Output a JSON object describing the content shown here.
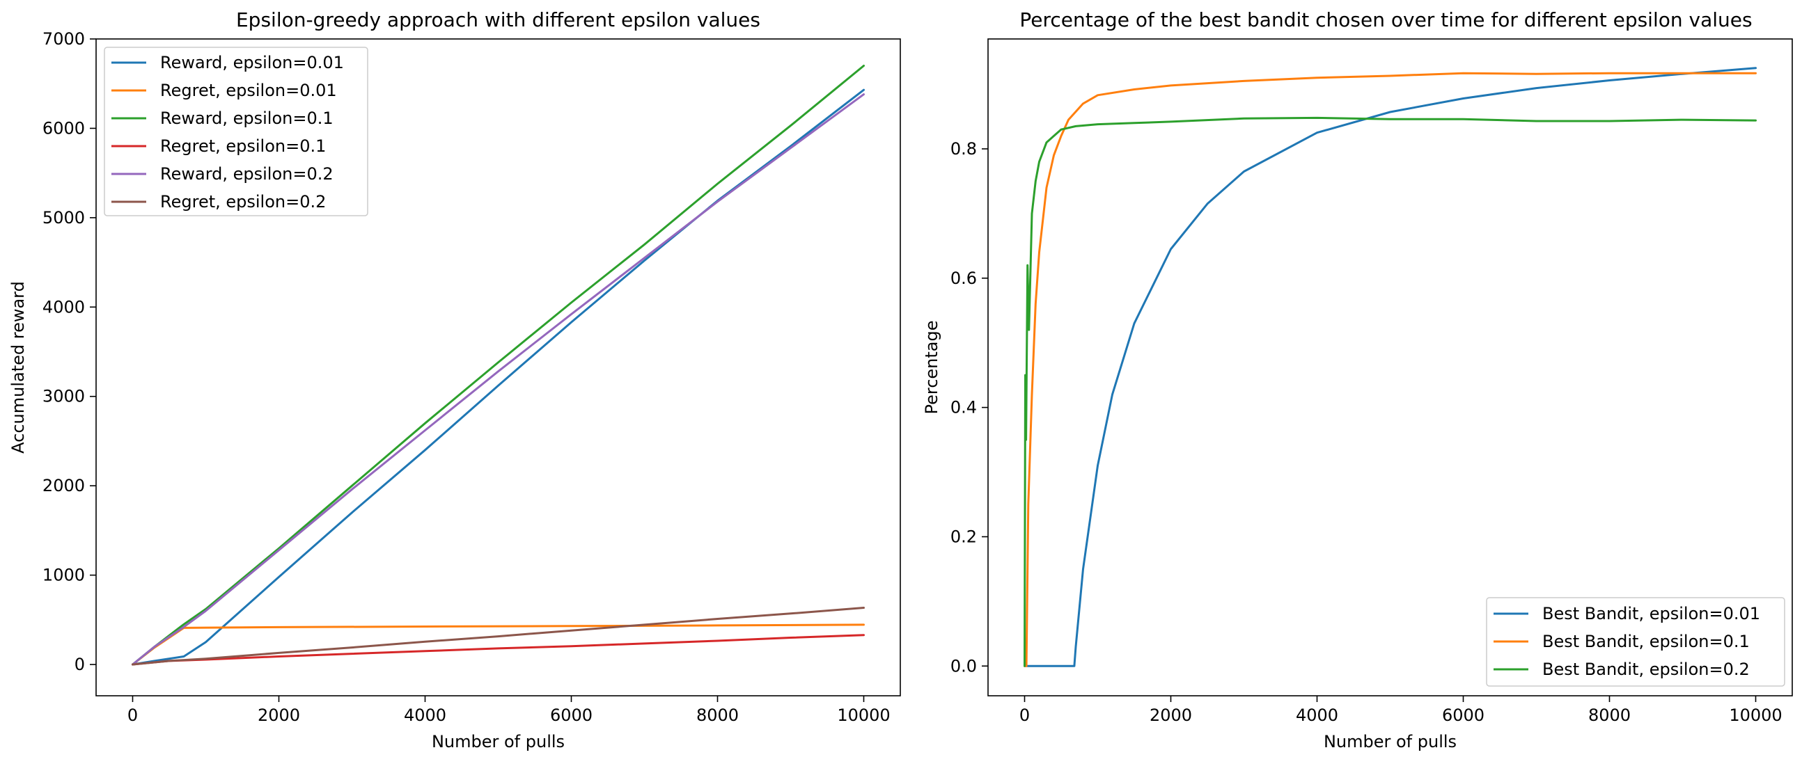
{
  "chart_data": [
    {
      "type": "line",
      "title": "Epsilon-greedy approach with different epsilon values",
      "xlabel": "Number of pulls",
      "ylabel": "Accumulated reward",
      "xlim": [
        -500,
        10500
      ],
      "ylim": [
        -350,
        7000
      ],
      "xticks": [
        0,
        2000,
        4000,
        6000,
        8000,
        10000
      ],
      "yticks": [
        0,
        1000,
        2000,
        3000,
        4000,
        5000,
        6000,
        7000
      ],
      "grid": false,
      "legend_position": "top-left",
      "series": [
        {
          "name": "Reward, epsilon=0.01",
          "color": "#1f77b4",
          "x": [
            0,
            300,
            700,
            1000,
            2000,
            3000,
            4000,
            5000,
            6000,
            7000,
            8000,
            9000,
            10000
          ],
          "y": [
            0,
            40,
            90,
            250,
            980,
            1700,
            2400,
            3120,
            3830,
            4520,
            5190,
            5800,
            6430
          ]
        },
        {
          "name": "Regret, epsilon=0.01",
          "color": "#ff7f0e",
          "x": [
            0,
            300,
            700,
            1000,
            2000,
            4000,
            6000,
            8000,
            10000
          ],
          "y": [
            0,
            190,
            410,
            412,
            418,
            425,
            430,
            437,
            445
          ]
        },
        {
          "name": "Reward, epsilon=0.1",
          "color": "#2ca02c",
          "x": [
            0,
            300,
            700,
            1000,
            2000,
            3000,
            4000,
            5000,
            6000,
            7000,
            8000,
            9000,
            10000
          ],
          "y": [
            0,
            200,
            450,
            620,
            1300,
            2000,
            2700,
            3380,
            4050,
            4700,
            5380,
            6030,
            6700
          ]
        },
        {
          "name": "Regret, epsilon=0.1",
          "color": "#d62728",
          "x": [
            0,
            500,
            1000,
            2000,
            3000,
            4000,
            5000,
            6000,
            7000,
            8000,
            9000,
            10000
          ],
          "y": [
            0,
            40,
            55,
            90,
            120,
            150,
            180,
            205,
            235,
            265,
            300,
            330
          ]
        },
        {
          "name": "Reward, epsilon=0.2",
          "color": "#9467bd",
          "x": [
            0,
            300,
            700,
            1000,
            2000,
            3000,
            4000,
            5000,
            6000,
            7000,
            8000,
            9000,
            10000
          ],
          "y": [
            0,
            200,
            420,
            600,
            1280,
            1960,
            2620,
            3280,
            3920,
            4550,
            5180,
            5780,
            6380
          ]
        },
        {
          "name": "Regret, epsilon=0.2",
          "color": "#8c564b",
          "x": [
            0,
            500,
            1000,
            2000,
            3000,
            4000,
            5000,
            6000,
            7000,
            8000,
            9000,
            10000
          ],
          "y": [
            0,
            40,
            65,
            130,
            190,
            255,
            315,
            380,
            445,
            510,
            570,
            635
          ]
        }
      ]
    },
    {
      "type": "line",
      "title": "Percentage of the best bandit chosen over time for different epsilon values",
      "xlabel": "Number of pulls",
      "ylabel": "Percentage",
      "xlim": [
        -500,
        10500
      ],
      "ylim": [
        -0.046,
        0.97
      ],
      "xticks": [
        0,
        2000,
        4000,
        6000,
        8000,
        10000
      ],
      "yticks": [
        0.0,
        0.2,
        0.4,
        0.6,
        0.8
      ],
      "ytick_labels": [
        "0.0",
        "0.2",
        "0.4",
        "0.6",
        "0.8"
      ],
      "grid": false,
      "legend_position": "bottom-right",
      "series": [
        {
          "name": "Best Bandit, epsilon=0.01",
          "color": "#1f77b4",
          "x": [
            0,
            680,
            700,
            800,
            1000,
            1200,
            1500,
            2000,
            2500,
            3000,
            4000,
            5000,
            6000,
            7000,
            8000,
            9000,
            10000
          ],
          "y": [
            0,
            0,
            0.03,
            0.15,
            0.31,
            0.42,
            0.53,
            0.645,
            0.715,
            0.765,
            0.825,
            0.857,
            0.878,
            0.894,
            0.906,
            0.916,
            0.925
          ]
        },
        {
          "name": "Best Bandit, epsilon=0.1",
          "color": "#ff7f0e",
          "x": [
            0,
            25,
            50,
            100,
            150,
            200,
            300,
            400,
            500,
            600,
            800,
            1000,
            1500,
            2000,
            3000,
            4000,
            5000,
            6000,
            7000,
            8000,
            9000,
            10000
          ],
          "y": [
            0,
            0,
            0.25,
            0.42,
            0.56,
            0.64,
            0.74,
            0.79,
            0.82,
            0.845,
            0.87,
            0.883,
            0.892,
            0.898,
            0.905,
            0.91,
            0.913,
            0.917,
            0.916,
            0.917,
            0.917,
            0.917
          ]
        },
        {
          "name": "Best Bandit, epsilon=0.2",
          "color": "#2ca02c",
          "x": [
            0,
            10,
            20,
            40,
            60,
            100,
            150,
            200,
            300,
            400,
            500,
            700,
            1000,
            1500,
            2000,
            3000,
            4000,
            5000,
            6000,
            7000,
            8000,
            9000,
            10000
          ],
          "y": [
            0,
            0.45,
            0.35,
            0.62,
            0.52,
            0.7,
            0.75,
            0.78,
            0.81,
            0.82,
            0.83,
            0.835,
            0.838,
            0.84,
            0.842,
            0.847,
            0.848,
            0.846,
            0.846,
            0.843,
            0.843,
            0.845,
            0.844
          ]
        }
      ]
    }
  ]
}
